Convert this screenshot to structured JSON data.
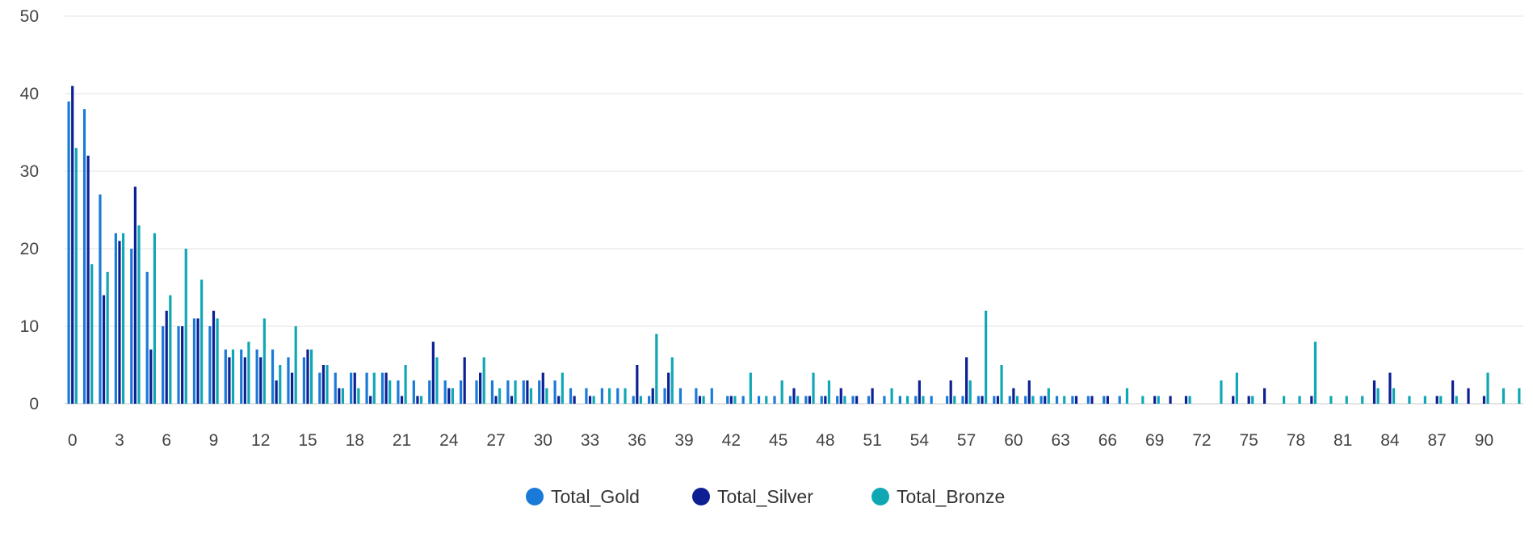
{
  "chart_data": {
    "type": "bar",
    "title": "",
    "xlabel": "",
    "ylabel": "",
    "ylim": [
      0,
      50
    ],
    "yticks": [
      0,
      10,
      20,
      30,
      40,
      50
    ],
    "xlim": [
      -0.5,
      92.5
    ],
    "xticks": [
      0,
      3,
      6,
      9,
      12,
      15,
      18,
      21,
      24,
      27,
      30,
      33,
      36,
      39,
      42,
      45,
      48,
      51,
      54,
      57,
      60,
      63,
      66,
      69,
      72,
      75,
      78,
      81,
      84,
      87,
      90
    ],
    "grid": true,
    "legend_position": "bottom",
    "series": [
      {
        "name": "Total_Gold",
        "color": "#1a7ad8",
        "values": [
          39,
          38,
          27,
          22,
          20,
          17,
          10,
          10,
          11,
          10,
          7,
          7,
          7,
          7,
          6,
          6,
          4,
          4,
          4,
          4,
          4,
          3,
          3,
          3,
          3,
          3,
          3,
          3,
          3,
          3,
          3,
          3,
          2,
          2,
          2,
          2,
          1,
          1,
          2,
          2,
          2,
          2,
          1,
          1,
          1,
          1,
          1,
          1,
          1,
          1,
          1,
          1,
          1,
          1,
          1,
          1,
          1,
          1,
          1,
          1,
          1,
          1,
          1,
          1,
          1,
          1,
          1,
          1,
          0,
          0,
          0,
          0,
          0,
          0,
          0,
          0,
          0,
          0,
          0,
          0,
          0,
          0,
          0,
          0,
          0,
          0,
          0,
          0,
          0,
          0,
          0,
          0,
          0
        ]
      },
      {
        "name": "Total_Silver",
        "color": "#0c2094",
        "values": [
          41,
          32,
          14,
          21,
          28,
          7,
          12,
          10,
          11,
          12,
          6,
          6,
          6,
          3,
          4,
          7,
          5,
          2,
          4,
          1,
          4,
          1,
          1,
          8,
          2,
          6,
          4,
          1,
          1,
          3,
          4,
          1,
          1,
          1,
          0,
          0,
          5,
          2,
          4,
          0,
          1,
          0,
          1,
          0,
          0,
          0,
          2,
          1,
          1,
          2,
          1,
          2,
          0,
          0,
          3,
          0,
          3,
          6,
          1,
          1,
          2,
          3,
          1,
          0,
          1,
          1,
          1,
          0,
          0,
          1,
          1,
          1,
          0,
          0,
          1,
          1,
          2,
          0,
          0,
          1,
          0,
          0,
          0,
          3,
          4,
          0,
          0,
          1,
          3,
          2,
          1,
          0,
          0
        ]
      },
      {
        "name": "Total_Bronze",
        "color": "#10a7b5",
        "values": [
          33,
          18,
          17,
          22,
          23,
          22,
          14,
          20,
          16,
          11,
          7,
          8,
          11,
          5,
          10,
          7,
          5,
          2,
          2,
          4,
          3,
          5,
          1,
          6,
          2,
          0,
          6,
          2,
          3,
          2,
          2,
          4,
          0,
          1,
          2,
          2,
          1,
          9,
          6,
          0,
          1,
          0,
          1,
          4,
          1,
          3,
          1,
          4,
          3,
          1,
          0,
          0,
          2,
          1,
          1,
          0,
          1,
          3,
          12,
          5,
          1,
          1,
          2,
          1,
          0,
          0,
          0,
          2,
          1,
          1,
          0,
          1,
          0,
          3,
          4,
          1,
          0,
          1,
          1,
          8,
          1,
          1,
          1,
          2,
          2,
          1,
          1,
          1,
          1,
          0,
          4,
          2,
          2
        ]
      }
    ]
  }
}
